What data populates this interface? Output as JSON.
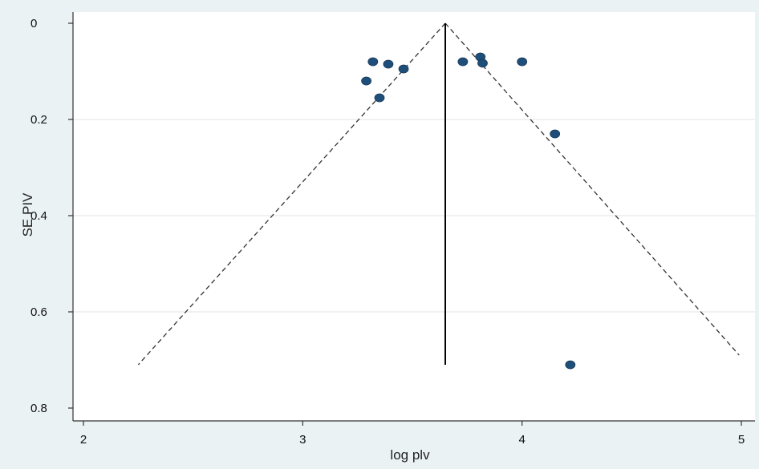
{
  "chart_data": {
    "type": "scatter",
    "xlabel": "log plv",
    "ylabel": "SE PIV",
    "xlim": [
      2,
      5
    ],
    "ylim": [
      0,
      0.8
    ],
    "y_reversed": true,
    "x_ticks": [
      2,
      3,
      4,
      5
    ],
    "y_ticks": [
      0,
      0.2,
      0.4,
      0.6,
      0.8
    ],
    "x_tick_labels": [
      "2",
      "3",
      "4",
      "5"
    ],
    "y_tick_labels": [
      "0",
      "0.2",
      "0.4",
      "0.6",
      "0.8"
    ],
    "grid": "horizontal",
    "point_color": "#1f4e79",
    "pooled_estimate": 3.65,
    "pooled_line": {
      "x": 3.65,
      "y_from": 0,
      "y_to": 0.71
    },
    "funnel_limits": [
      {
        "x1": 3.65,
        "y1": 0,
        "x2": 2.25,
        "y2": 0.71
      },
      {
        "x1": 3.65,
        "y1": 0,
        "x2": 4.99,
        "y2": 0.69
      }
    ],
    "points": [
      {
        "x": 3.32,
        "y": 0.08
      },
      {
        "x": 3.39,
        "y": 0.085
      },
      {
        "x": 3.46,
        "y": 0.095
      },
      {
        "x": 3.29,
        "y": 0.12
      },
      {
        "x": 3.35,
        "y": 0.155
      },
      {
        "x": 3.73,
        "y": 0.08
      },
      {
        "x": 3.81,
        "y": 0.07
      },
      {
        "x": 3.82,
        "y": 0.083
      },
      {
        "x": 4.0,
        "y": 0.08
      },
      {
        "x": 4.15,
        "y": 0.23
      },
      {
        "x": 4.22,
        "y": 0.71
      }
    ]
  }
}
